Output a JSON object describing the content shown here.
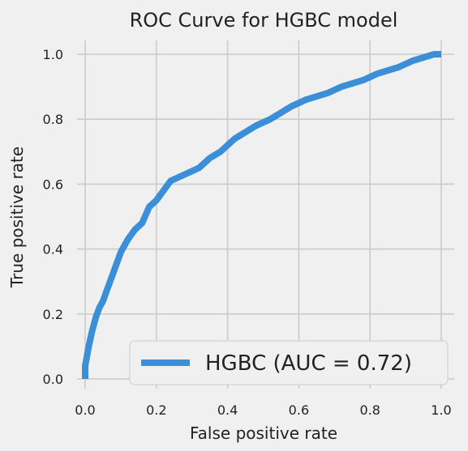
{
  "chart_data": {
    "type": "line",
    "title": "ROC Curve for HGBC model",
    "xlabel": "False positive rate",
    "ylabel": "True positive rate",
    "xlim": [
      0.0,
      1.0
    ],
    "ylim": [
      0.0,
      1.0
    ],
    "xticks": [
      "0.0",
      "0.2",
      "0.4",
      "0.6",
      "0.8",
      "1.0"
    ],
    "yticks": [
      "0.0",
      "0.2",
      "0.4",
      "0.6",
      "0.8",
      "1.0"
    ],
    "grid": true,
    "legend_position": "bottom-right",
    "background_color": "#f0f0f0",
    "grid_color": "#cbcbcb",
    "series": [
      {
        "name": "HGBC (AUC = 0.72)",
        "color": "#3b8ed8",
        "x": [
          0.0,
          0.0,
          0.01,
          0.02,
          0.03,
          0.04,
          0.05,
          0.06,
          0.07,
          0.08,
          0.09,
          0.1,
          0.12,
          0.14,
          0.16,
          0.18,
          0.2,
          0.22,
          0.24,
          0.26,
          0.28,
          0.3,
          0.32,
          0.35,
          0.38,
          0.4,
          0.42,
          0.45,
          0.48,
          0.5,
          0.52,
          0.55,
          0.58,
          0.6,
          0.62,
          0.65,
          0.68,
          0.7,
          0.72,
          0.75,
          0.78,
          0.8,
          0.82,
          0.85,
          0.88,
          0.9,
          0.92,
          0.95,
          0.98,
          1.0
        ],
        "y": [
          0.0,
          0.04,
          0.1,
          0.15,
          0.19,
          0.22,
          0.24,
          0.27,
          0.3,
          0.33,
          0.36,
          0.39,
          0.43,
          0.46,
          0.48,
          0.53,
          0.55,
          0.58,
          0.61,
          0.62,
          0.63,
          0.64,
          0.65,
          0.68,
          0.7,
          0.72,
          0.74,
          0.76,
          0.78,
          0.79,
          0.8,
          0.82,
          0.84,
          0.85,
          0.86,
          0.87,
          0.88,
          0.89,
          0.9,
          0.91,
          0.92,
          0.93,
          0.94,
          0.95,
          0.96,
          0.97,
          0.98,
          0.99,
          1.0,
          1.0
        ]
      }
    ]
  }
}
